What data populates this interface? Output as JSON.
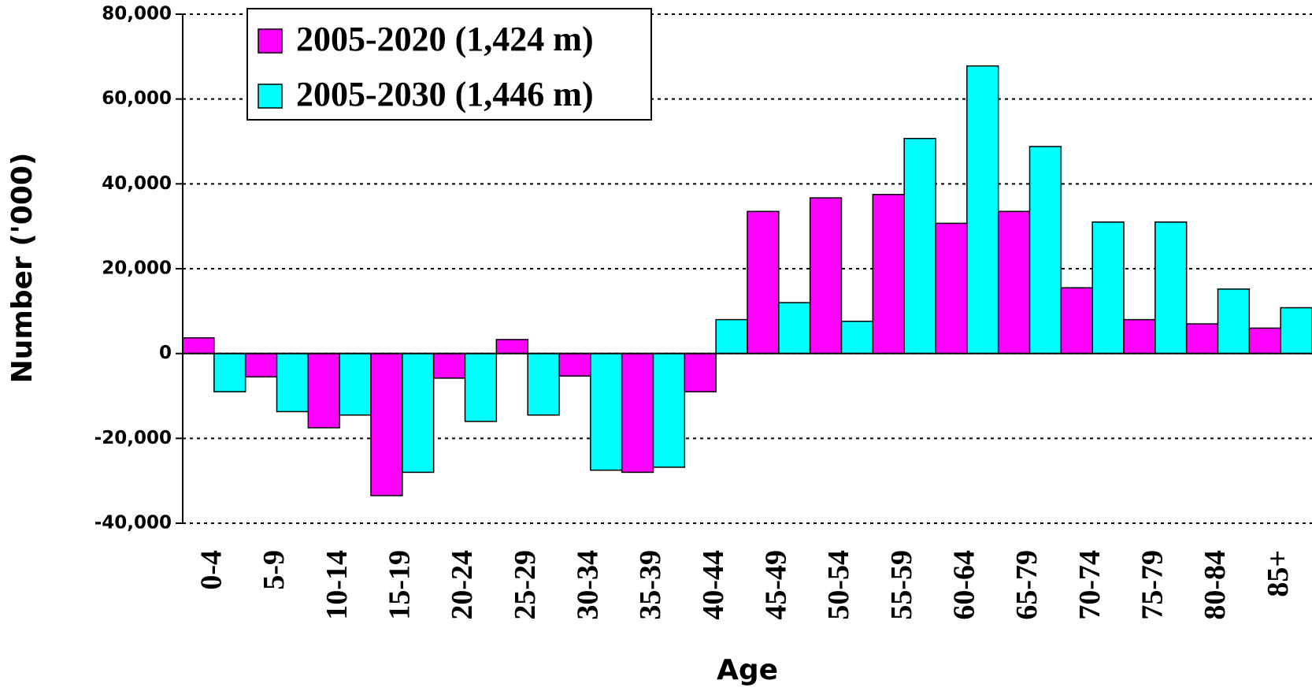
{
  "chart_data": {
    "type": "bar",
    "x_label": "Age",
    "y_label": "Number ('000)",
    "categories": [
      "0-4",
      "5-9",
      "10-14",
      "15-19",
      "20-24",
      "25-29",
      "30-34",
      "35-39",
      "40-44",
      "45-49",
      "50-54",
      "55-59",
      "60-64",
      "65-79",
      "70-74",
      "75-79",
      "80-84",
      "85+"
    ],
    "series": [
      {
        "name": "2005-2020 (1,424 m)",
        "color": "#ff00ff",
        "values": [
          3700,
          -5500,
          -17500,
          -33500,
          -5800,
          3300,
          -5300,
          -28000,
          -9000,
          33500,
          36700,
          37500,
          30700,
          33500,
          15500,
          8000,
          7000,
          6000
        ]
      },
      {
        "name": "2005-2030 (1,446 m)",
        "color": "#00ffff",
        "values": [
          -9000,
          -13700,
          -14500,
          -28000,
          -16000,
          -14500,
          -27500,
          -26800,
          8000,
          12000,
          7600,
          50700,
          67800,
          48800,
          31000,
          31000,
          15200,
          10800
        ]
      }
    ],
    "ylim": [
      -40000,
      80000
    ],
    "yticks": [
      {
        "value": -40000,
        "label": "-40,000"
      },
      {
        "value": -20000,
        "label": "-20,000"
      },
      0,
      {
        "value": 20000,
        "label": "20,000"
      },
      {
        "value": 40000,
        "label": "40,000"
      },
      {
        "value": 60000,
        "label": "60,000"
      },
      {
        "value": 80000,
        "label": "80,000"
      }
    ],
    "grid": true,
    "legend": "top-left"
  }
}
